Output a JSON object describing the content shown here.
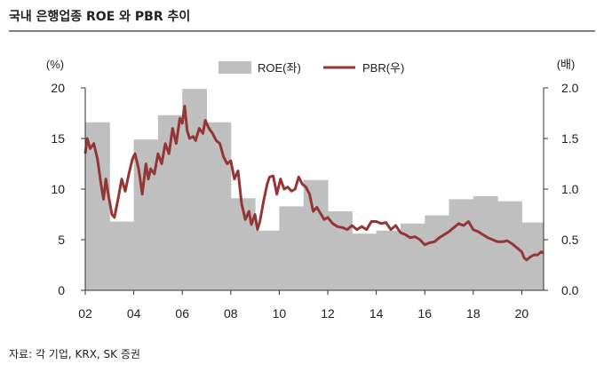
{
  "title": "국내 은행업종 ROE 와 PBR 추이",
  "source": "자료: 각 기업, KRX, SK 증권",
  "colors": {
    "roe": "#bfbfbf",
    "pbr": "#943634",
    "axis": "#333333",
    "rule": "#7f7f7f"
  },
  "chart_data": {
    "type": "area",
    "left_unit": "(%)",
    "right_unit": "(배)",
    "legend": {
      "roe": "ROE(좌)",
      "pbr": "PBR(우)",
      "placement": "top"
    },
    "left_ylim": [
      0,
      20
    ],
    "right_ylim": [
      0.0,
      2.0
    ],
    "left_ticks": [
      "0",
      "5",
      "10",
      "15",
      "20"
    ],
    "right_ticks": [
      "0.0",
      "0.5",
      "1.0",
      "1.5",
      "2.0"
    ],
    "x_ticks": [
      "02",
      "04",
      "06",
      "08",
      "10",
      "12",
      "14",
      "16",
      "18",
      "20"
    ],
    "xlim": [
      2002,
      2020.9
    ],
    "grid": false,
    "roe_series": {
      "name": "ROE(좌)",
      "axis": "left",
      "x": [
        2002,
        2003,
        2004,
        2005,
        2006,
        2007,
        2008,
        2009,
        2010,
        2011,
        2012,
        2013,
        2014,
        2015,
        2016,
        2017,
        2018,
        2019,
        2020
      ],
      "values": [
        16.6,
        6.8,
        14.9,
        17.3,
        19.9,
        16.6,
        9.1,
        5.9,
        8.3,
        10.9,
        7.8,
        5.6,
        5.9,
        6.6,
        7.4,
        9.0,
        9.3,
        8.8,
        6.7
      ]
    },
    "pbr_series": {
      "name": "PBR(우)",
      "axis": "right",
      "x": [
        2002.0,
        2002.08,
        2002.2,
        2002.35,
        2002.5,
        2002.65,
        2002.75,
        2002.85,
        2002.95,
        2003.1,
        2003.2,
        2003.35,
        2003.5,
        2003.65,
        2003.8,
        2003.95,
        2004.05,
        2004.2,
        2004.35,
        2004.5,
        2004.6,
        2004.7,
        2004.85,
        2005.0,
        2005.15,
        2005.3,
        2005.45,
        2005.6,
        2005.75,
        2005.9,
        2006.0,
        2006.1,
        2006.2,
        2006.3,
        2006.45,
        2006.55,
        2006.7,
        2006.85,
        2006.95,
        2007.1,
        2007.25,
        2007.4,
        2007.55,
        2007.7,
        2007.85,
        2008.0,
        2008.15,
        2008.3,
        2008.45,
        2008.6,
        2008.75,
        2008.85,
        2009.0,
        2009.1,
        2009.2,
        2009.35,
        2009.5,
        2009.6,
        2009.75,
        2009.9,
        2010.05,
        2010.2,
        2010.35,
        2010.5,
        2010.65,
        2010.8,
        2010.95,
        2011.1,
        2011.25,
        2011.4,
        2011.55,
        2011.7,
        2011.85,
        2012.0,
        2012.2,
        2012.4,
        2012.6,
        2012.8,
        2013.0,
        2013.2,
        2013.4,
        2013.6,
        2013.8,
        2014.0,
        2014.2,
        2014.4,
        2014.6,
        2014.8,
        2015.0,
        2015.2,
        2015.4,
        2015.6,
        2015.8,
        2016.0,
        2016.2,
        2016.4,
        2016.6,
        2016.8,
        2017.0,
        2017.2,
        2017.4,
        2017.6,
        2017.8,
        2018.0,
        2018.2,
        2018.4,
        2018.6,
        2018.8,
        2019.0,
        2019.2,
        2019.4,
        2019.6,
        2019.8,
        2020.0,
        2020.1,
        2020.2,
        2020.35,
        2020.5,
        2020.65,
        2020.8,
        2020.9
      ],
      "values": [
        1.35,
        1.5,
        1.4,
        1.45,
        1.3,
        1.05,
        0.9,
        1.1,
        0.95,
        0.75,
        0.72,
        0.9,
        1.1,
        0.98,
        1.15,
        1.3,
        1.35,
        1.2,
        0.95,
        1.25,
        1.1,
        1.2,
        1.15,
        1.35,
        1.25,
        1.45,
        1.35,
        1.6,
        1.45,
        1.7,
        1.65,
        1.82,
        1.58,
        1.5,
        1.52,
        1.48,
        1.6,
        1.55,
        1.68,
        1.6,
        1.55,
        1.48,
        1.45,
        1.32,
        1.25,
        1.28,
        1.1,
        1.18,
        0.85,
        0.7,
        0.78,
        0.65,
        0.75,
        0.6,
        0.68,
        0.88,
        1.05,
        1.12,
        1.13,
        0.95,
        1.1,
        1.0,
        1.02,
        0.98,
        1.0,
        1.12,
        1.05,
        1.02,
        0.95,
        0.78,
        0.82,
        0.76,
        0.7,
        0.72,
        0.66,
        0.63,
        0.62,
        0.6,
        0.64,
        0.6,
        0.63,
        0.6,
        0.68,
        0.68,
        0.66,
        0.67,
        0.6,
        0.64,
        0.57,
        0.55,
        0.52,
        0.53,
        0.5,
        0.45,
        0.47,
        0.48,
        0.52,
        0.55,
        0.58,
        0.62,
        0.66,
        0.64,
        0.68,
        0.6,
        0.58,
        0.55,
        0.52,
        0.5,
        0.48,
        0.48,
        0.49,
        0.46,
        0.42,
        0.38,
        0.32,
        0.3,
        0.33,
        0.35,
        0.35,
        0.38,
        0.37
      ]
    }
  }
}
